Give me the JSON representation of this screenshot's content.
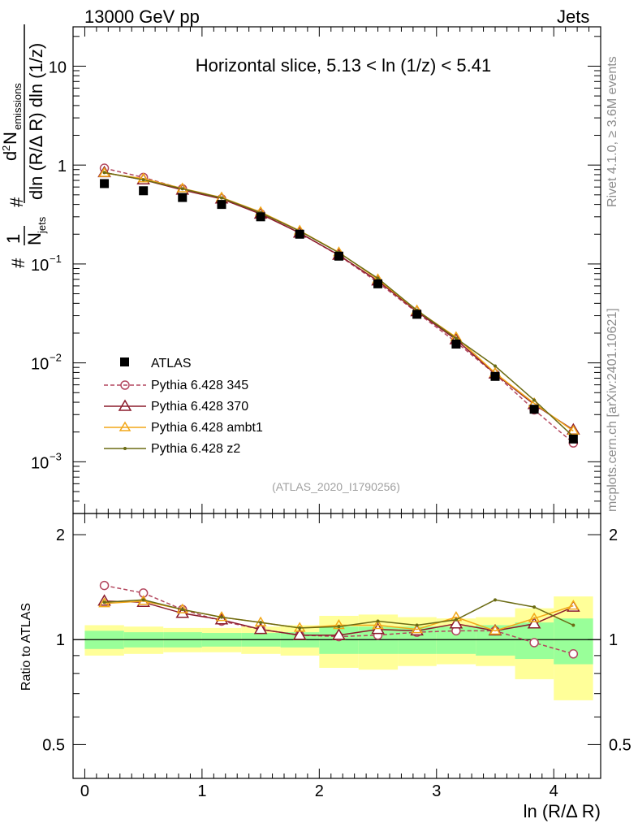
{
  "header": {
    "left": "13000 GeV pp",
    "right": "Jets"
  },
  "side_labels": {
    "rivet": "Rivet 4.1.0, ≥ 3.6M events",
    "mcplots": "mcplots.cern.ch [arXiv:2401.10621]"
  },
  "chart_data": {
    "type": "line",
    "title": "Horizontal slice, 5.13 < ln (1/z) < 5.41",
    "watermark": "(ATLAS_2020_I1790256)",
    "xlabel": "ln (R/Δ R)",
    "ylabel": "#1/N_jets #d²N_emissions/dln(R/ΔR) dln(1/z)",
    "ylabel_parts": {
      "hash1": "#",
      "one": "1",
      "N": "N",
      "jets": "jets",
      "hash2": "#",
      "d2": "d",
      "sup2": "2",
      "Nem": "N",
      "emissions": "emissions",
      "denom": "dln (R/Δ R) dln (1/z)"
    },
    "ratio_ylabel": "Ratio to ATLAS",
    "xlim": [
      -0.1,
      4.4
    ],
    "ylim_main": [
      0.0003,
      25
    ],
    "ylim_ratio": [
      0.4,
      2.3
    ],
    "x_ticks": [
      "0",
      "1",
      "2",
      "3",
      "4"
    ],
    "y_ticks_main": [
      {
        "base": "10",
        "exp": "",
        "value": 10
      },
      {
        "base": "1",
        "exp": "",
        "value": 1
      },
      {
        "base": "10",
        "exp": "−1",
        "value": 0.1
      },
      {
        "base": "10",
        "exp": "−2",
        "value": 0.01
      },
      {
        "base": "10",
        "exp": "−3",
        "value": 0.001
      }
    ],
    "y_ticks_ratio": [
      {
        "label": "2",
        "value": 2
      },
      {
        "label": "1",
        "value": 1
      },
      {
        "label": "0.5",
        "value": 0.5
      }
    ],
    "bins": [
      0,
      0.335,
      0.67,
      1.0,
      1.335,
      1.67,
      2.0,
      2.335,
      2.67,
      3.0,
      3.335,
      3.67,
      4.0,
      4.335
    ],
    "x": [
      0.167,
      0.5,
      0.833,
      1.167,
      1.5,
      1.833,
      2.167,
      2.5,
      2.833,
      3.167,
      3.5,
      3.833,
      4.167
    ],
    "data": {
      "name": "ATLAS",
      "color": "#000000",
      "values": [
        0.65,
        0.55,
        0.47,
        0.4,
        0.3,
        0.2,
        0.12,
        0.063,
        0.031,
        0.0155,
        0.0073,
        0.0034,
        0.0017
      ],
      "band_inner": [
        0.06,
        0.05,
        0.05,
        0.045,
        0.045,
        0.05,
        0.09,
        0.09,
        0.09,
        0.09,
        0.1,
        0.12,
        0.15
      ],
      "band_outer": [
        0.1,
        0.09,
        0.08,
        0.08,
        0.09,
        0.1,
        0.17,
        0.18,
        0.16,
        0.15,
        0.16,
        0.23,
        0.33
      ]
    },
    "series": [
      {
        "name": "Pythia 6.428 345",
        "color": "#b3475e",
        "marker": "circle",
        "dashed": true,
        "values": [
          0.93,
          0.75,
          0.575,
          0.455,
          0.322,
          0.206,
          0.122,
          0.065,
          0.0323,
          0.0162,
          0.0077,
          0.00335,
          0.00155
        ],
        "ratio": [
          1.43,
          1.36,
          1.22,
          1.13,
          1.07,
          1.03,
          1.02,
          1.03,
          1.05,
          1.06,
          1.06,
          0.98,
          0.91
        ]
      },
      {
        "name": "Pythia 6.428 370",
        "color": "#8b1c2c",
        "marker": "triangle",
        "dashed": false,
        "values": [
          0.84,
          0.71,
          0.56,
          0.455,
          0.32,
          0.206,
          0.123,
          0.0675,
          0.033,
          0.0172,
          0.00775,
          0.0038,
          0.0021
        ],
        "ratio": [
          1.29,
          1.28,
          1.19,
          1.14,
          1.07,
          1.03,
          1.03,
          1.07,
          1.06,
          1.11,
          1.06,
          1.11,
          1.24
        ]
      },
      {
        "name": "Pythia 6.428 ambt1",
        "color": "#f2a718",
        "marker": "triangle-open",
        "dashed": false,
        "values": [
          0.83,
          0.73,
          0.58,
          0.47,
          0.335,
          0.217,
          0.131,
          0.07,
          0.0339,
          0.0182,
          0.0079,
          0.0039,
          0.00205
        ],
        "ratio": [
          1.27,
          1.29,
          1.22,
          1.16,
          1.12,
          1.08,
          1.1,
          1.1,
          1.07,
          1.16,
          1.06,
          1.15,
          1.25
        ]
      },
      {
        "name": "Pythia 6.428 z2",
        "color": "#6b6b14",
        "marker": "dot",
        "dashed": false,
        "values": [
          0.84,
          0.71,
          0.575,
          0.465,
          0.33,
          0.215,
          0.13,
          0.0715,
          0.034,
          0.0177,
          0.0093,
          0.0042,
          0.0018
        ],
        "ratio": [
          1.28,
          1.3,
          1.22,
          1.16,
          1.12,
          1.08,
          1.09,
          1.13,
          1.1,
          1.14,
          1.3,
          1.24,
          1.1
        ]
      }
    ]
  }
}
